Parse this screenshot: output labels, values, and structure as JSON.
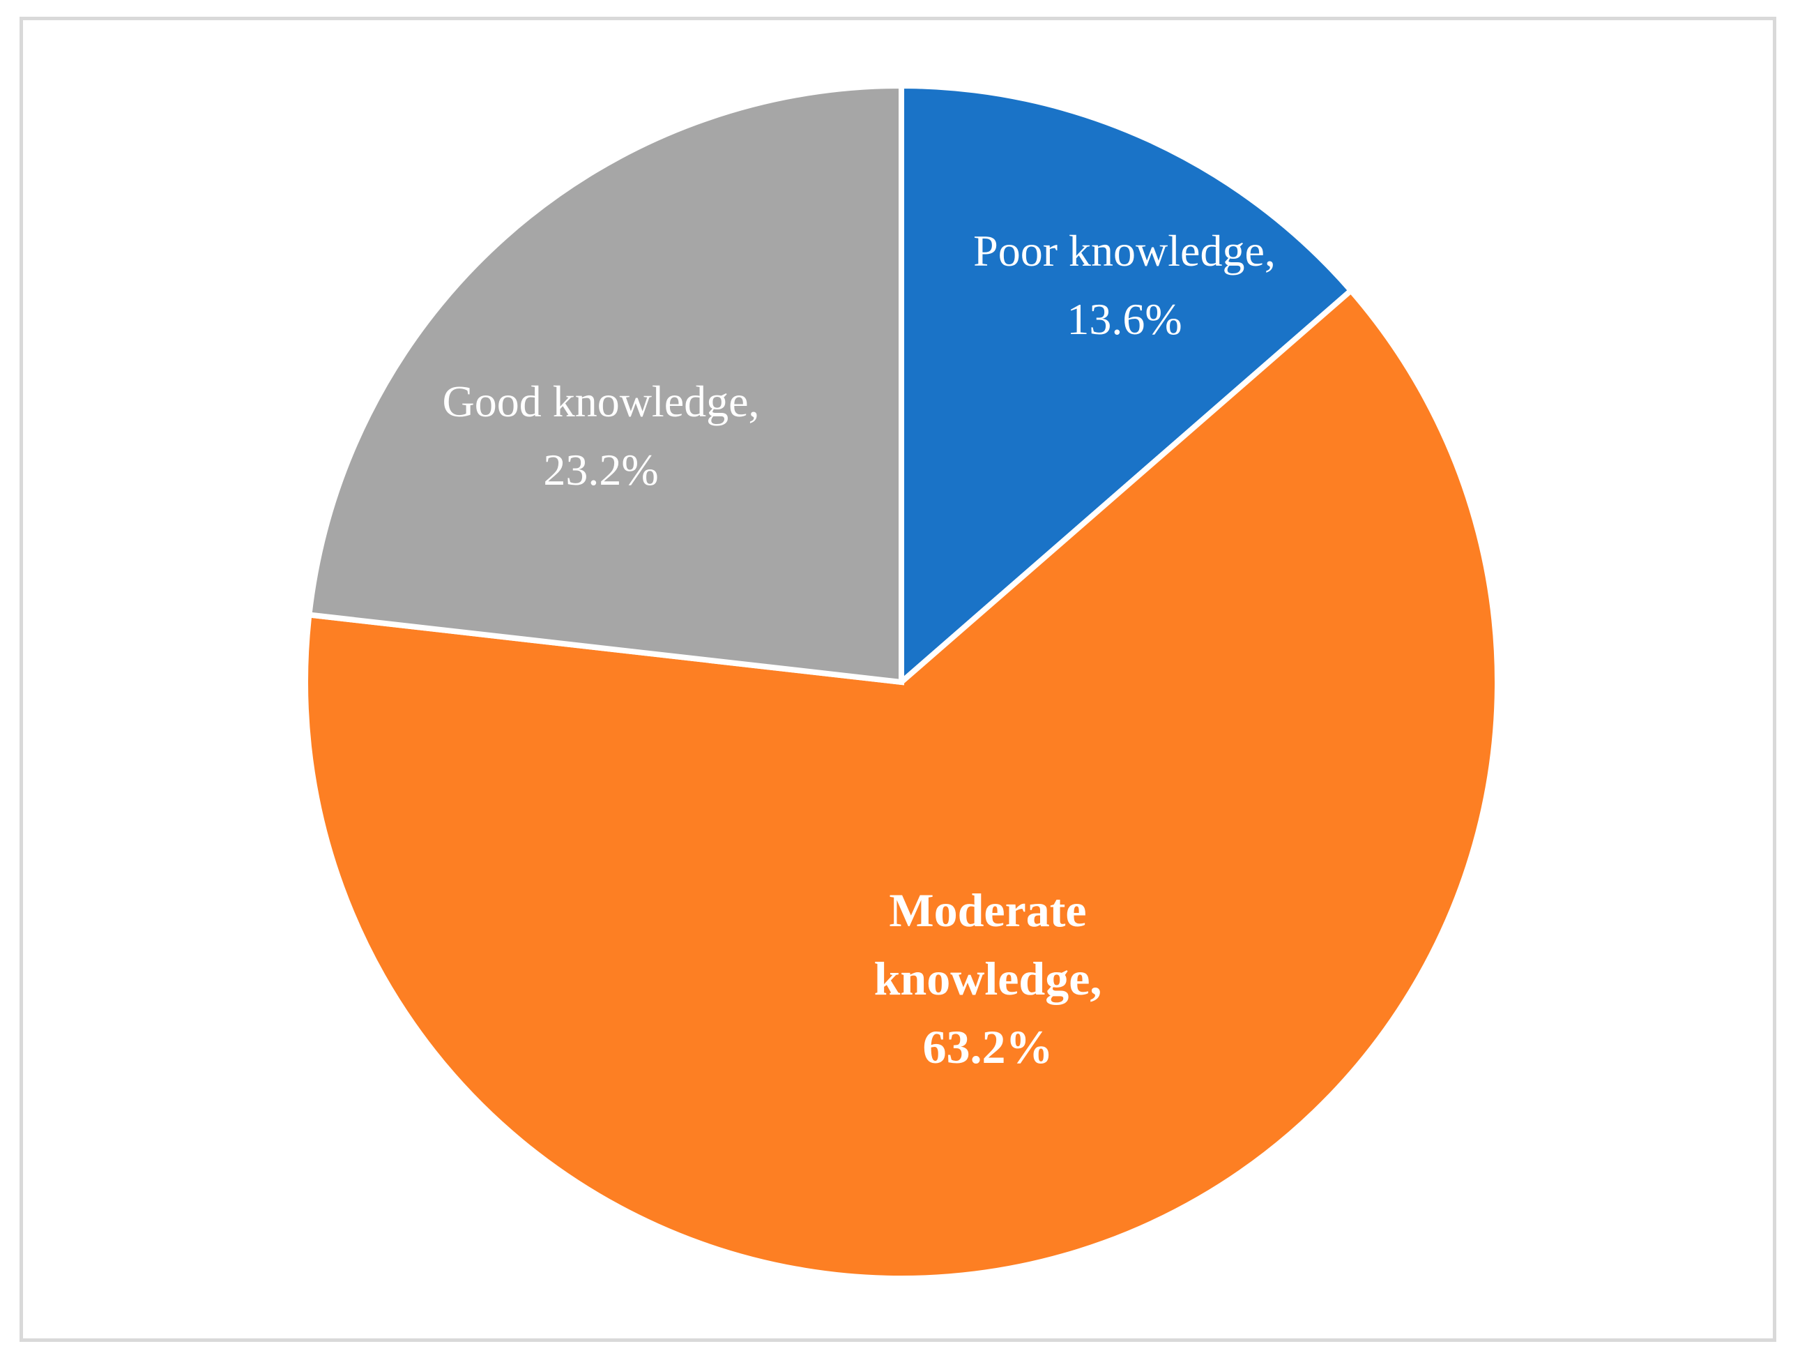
{
  "chart_data": {
    "type": "pie",
    "title": "",
    "slices": [
      {
        "category": "Poor knowledge",
        "value": 13.6,
        "label_lines": [
          "Poor knowledge,",
          "13.6%"
        ],
        "color": "#1a73c7",
        "bold": false
      },
      {
        "category": "Moderate knowledge",
        "value": 63.2,
        "label_lines": [
          "Moderate",
          "knowledge,",
          "63.2%"
        ],
        "color": "#fd7f23",
        "bold": true
      },
      {
        "category": "Good knowledge",
        "value": 23.2,
        "label_lines": [
          "Good knowledge,",
          "23.2%"
        ],
        "color": "#a6a6a6",
        "bold": false
      }
    ],
    "start_angle": "12 o'clock",
    "direction": "clockwise",
    "legend": "none",
    "data_labels": "inside"
  }
}
